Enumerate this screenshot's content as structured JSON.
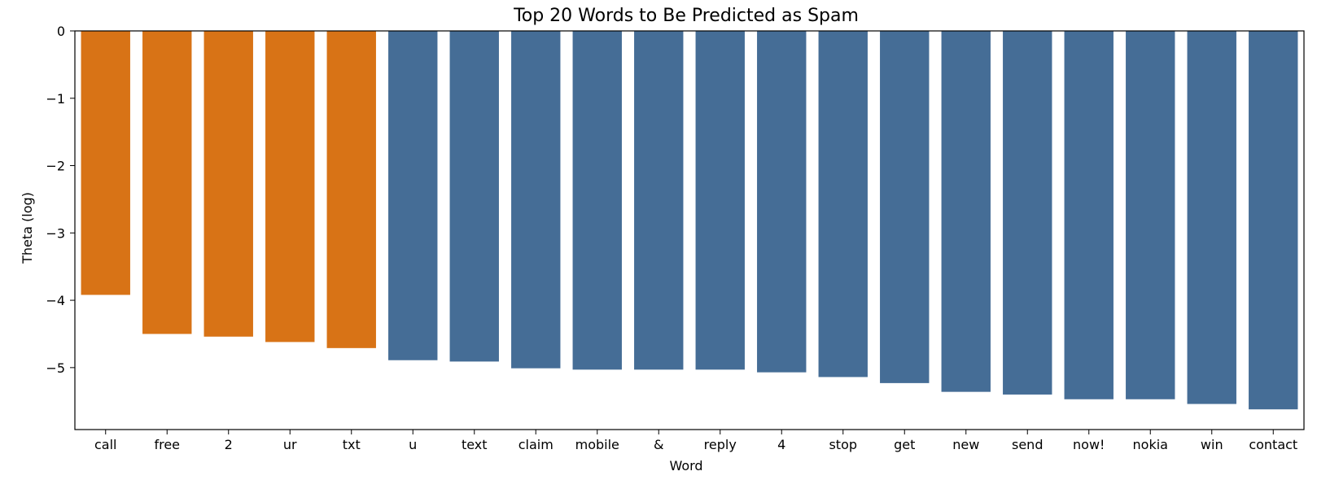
{
  "chart_data": {
    "type": "bar",
    "title": "Top 20 Words to Be Predicted as Spam",
    "xlabel": "Word",
    "ylabel": "Theta (log)",
    "categories": [
      "call",
      "free",
      "2",
      "ur",
      "txt",
      "u",
      "text",
      "claim",
      "mobile",
      "&",
      "reply",
      "4",
      "stop",
      "get",
      "new",
      "send",
      "now!",
      "nokia",
      "win",
      "contact"
    ],
    "values": [
      -3.92,
      -4.5,
      -4.54,
      -4.62,
      -4.71,
      -4.89,
      -4.91,
      -5.01,
      -5.03,
      -5.03,
      -5.03,
      -5.07,
      -5.14,
      -5.23,
      -5.36,
      -5.4,
      -5.47,
      -5.47,
      -5.54,
      -5.62
    ],
    "highlight_count": 5,
    "colors": {
      "highlight": "#d87316",
      "default": "#456d96"
    },
    "ylim": [
      -5.92,
      0
    ],
    "yticks": [
      0,
      -1,
      -2,
      -3,
      -4,
      -5
    ],
    "ytick_labels": [
      "0",
      "−1",
      "−2",
      "−3",
      "−4",
      "−5"
    ],
    "grid": false,
    "legend": "none"
  }
}
